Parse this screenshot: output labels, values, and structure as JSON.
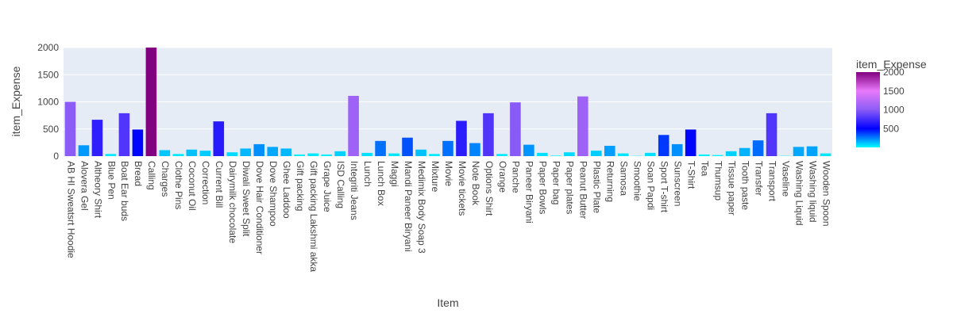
{
  "chart_data": {
    "type": "bar",
    "title": "",
    "xlabel": "Item",
    "ylabel": "item_Expense",
    "ylim": [
      0,
      2000
    ],
    "yticks": [
      0,
      500,
      1000,
      1500,
      2000
    ],
    "ytick_labels": [
      "0",
      "500",
      "1000",
      "1500",
      "2000"
    ],
    "grid": true,
    "colorbar": {
      "title": "item_Expense",
      "ticks": [
        500,
        1000,
        1500,
        2000
      ],
      "tick_labels": [
        "500",
        "1000",
        "1500",
        "2000"
      ],
      "range": [
        0,
        2000
      ],
      "colorscale": [
        "#00ffff",
        "#0000ff",
        "#8b5cf6",
        "#e879f9",
        "#800080"
      ]
    },
    "categories": [
      "AB HI Sweatsrt Hoodie",
      "Alovera Gel",
      "Altheory Shirt",
      "Blue Pen",
      "Boat Ear buds",
      "Bread",
      "Calling",
      "Charges",
      "Clothe Pins",
      "Coconut Oil",
      "Correction",
      "Current Bill",
      "Dairymilk chocolate",
      "Diwali Sweet Split",
      "Dove Hair Conditioner",
      "Dove Shampoo",
      "Ghee Laddoo",
      "Gift packing",
      "Gift packing Lakshmi akka",
      "Grape Juice",
      "ISD Calling",
      "Integriti Jeans",
      "Lunch",
      "Lunch Box",
      "Maggi",
      "Mandi Paneer Biryani",
      "Medimix Body Soap 3",
      "Mixture",
      "Movie",
      "Movie tickets",
      "Note Book",
      "Options Shirt",
      "Orange",
      "Panche",
      "Paneer Biryani",
      "Paper Bowls",
      "Paper bag",
      "Paper plates",
      "Peanut Butter",
      "Plastic Plate",
      "Returning",
      "Samosa",
      "Smoothie",
      "Soan Papdi",
      "Sport T-shirt",
      "Sunscreen",
      "T-Shirt",
      "Tea",
      "Thumsup",
      "Tissue paper",
      "Tooth paste",
      "Transfer",
      "Transport",
      "Vaseline",
      "Washing Liquid",
      "Washing liquid",
      "Wooden Spoon"
    ],
    "values": [
      1000,
      200,
      670,
      40,
      790,
      490,
      2000,
      110,
      40,
      120,
      100,
      640,
      70,
      140,
      220,
      170,
      140,
      30,
      50,
      30,
      90,
      1110,
      60,
      280,
      50,
      340,
      120,
      40,
      280,
      650,
      240,
      790,
      40,
      990,
      210,
      60,
      10,
      70,
      1100,
      100,
      190,
      50,
      5,
      60,
      390,
      220,
      490,
      30,
      20,
      90,
      150,
      290,
      790,
      5,
      170,
      180,
      50
    ]
  }
}
